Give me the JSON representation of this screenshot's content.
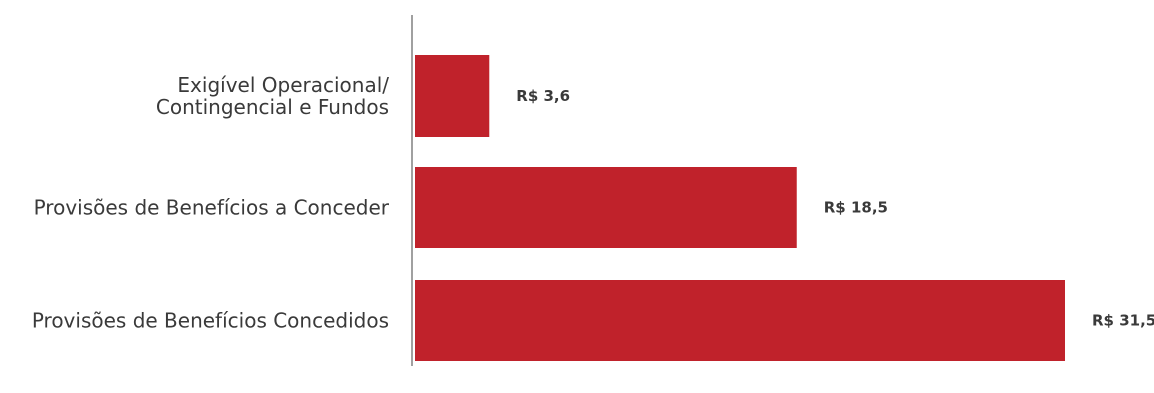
{
  "chart_data": {
    "type": "bar",
    "orientation": "horizontal",
    "categories": [
      [
        "Exigível Operacional/",
        "Contingencial e Fundos"
      ],
      [
        "Provisões de Benefícios a Conceder"
      ],
      [
        "Provisões de Benefícios Concedidos"
      ]
    ],
    "values": [
      3.6,
      18.5,
      31.5
    ],
    "value_labels": [
      "R$ 3,6",
      "R$ 18,5",
      "R$ 31,5"
    ],
    "title": "",
    "xlabel": "",
    "ylabel": "",
    "xlim": [
      0,
      31.5
    ],
    "grid": false,
    "colors": {
      "bar": "#c0222b",
      "axis": "#a0a0a0",
      "text": "#3a3a3a"
    }
  }
}
